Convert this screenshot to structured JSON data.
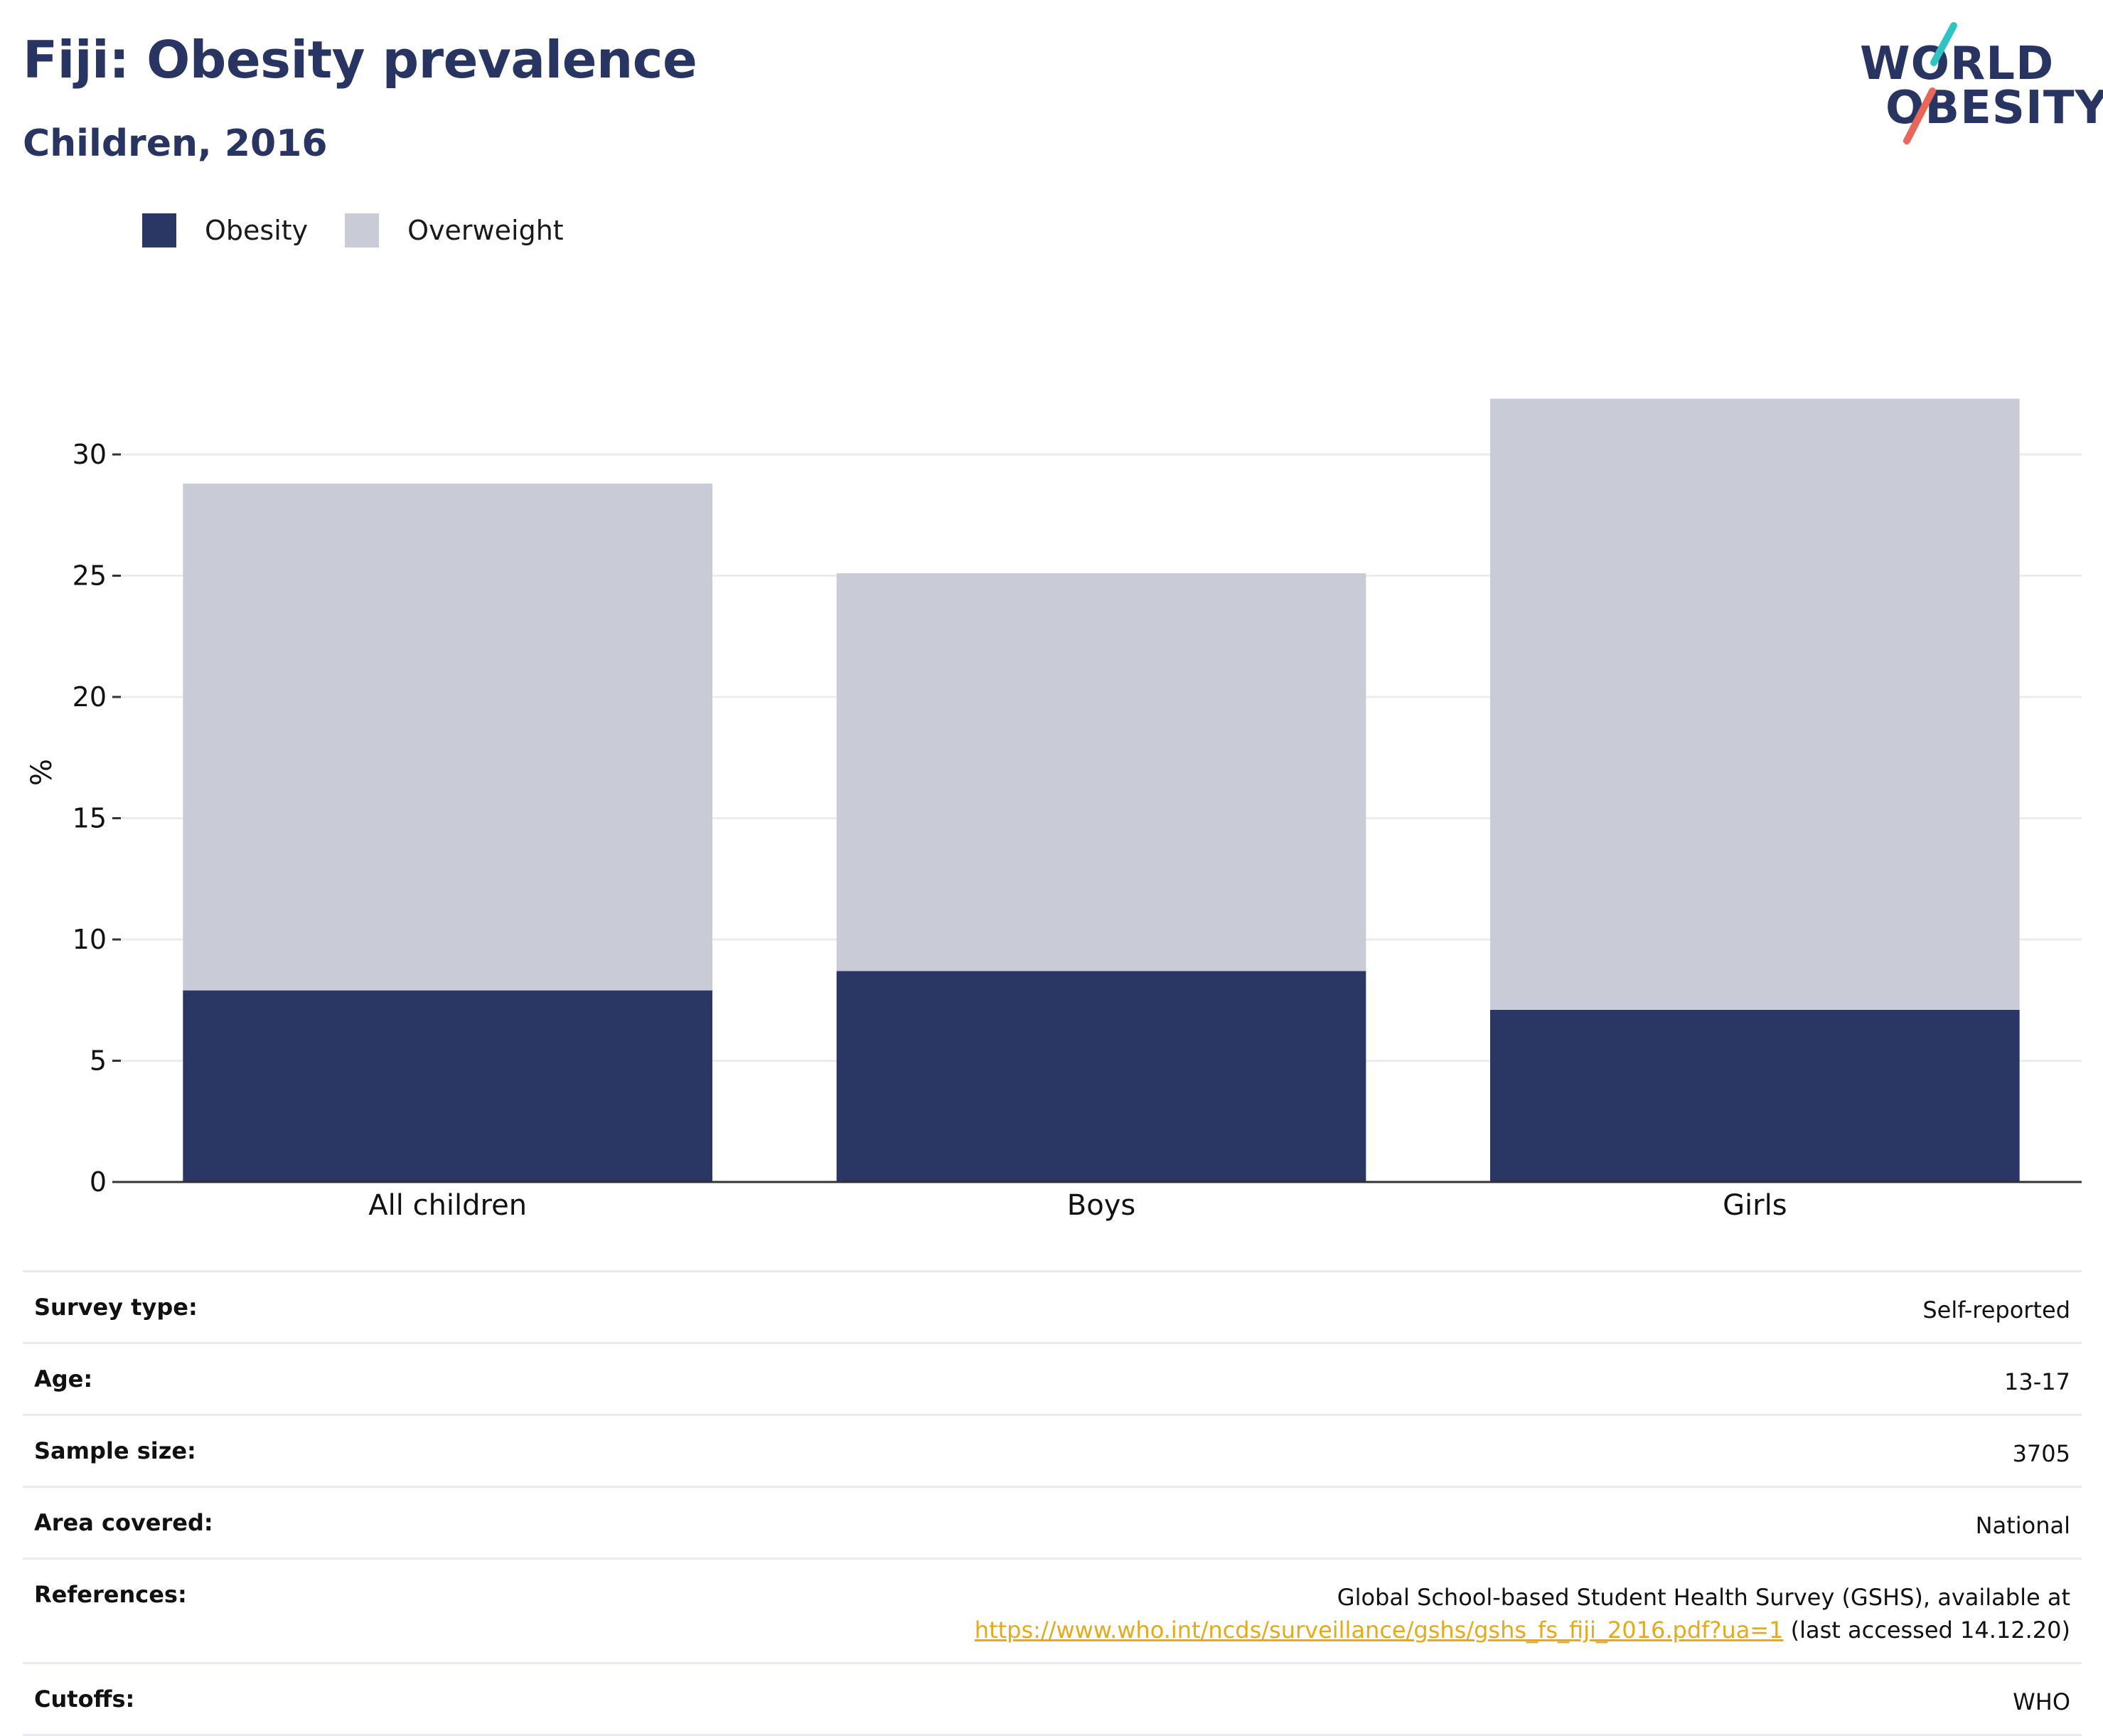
{
  "header": {
    "title": "Fiji: Obesity prevalence",
    "subtitle": "Children, 2016"
  },
  "logo": {
    "line1": "WORLD",
    "line2": "OBESITY"
  },
  "colors": {
    "obesity": "#2a3664",
    "overweight": "#c9cbd7",
    "accent_teal": "#2ec4c6",
    "accent_coral": "#e8665a"
  },
  "legend": {
    "items": [
      {
        "label": "Obesity"
      },
      {
        "label": "Overweight"
      }
    ]
  },
  "chart_data": {
    "type": "bar",
    "stacked": true,
    "ylabel": "%",
    "categories": [
      "All children",
      "Boys",
      "Girls"
    ],
    "series": [
      {
        "name": "Obesity",
        "values": [
          7.9,
          8.7,
          7.1
        ]
      },
      {
        "name": "Overweight",
        "values": [
          20.9,
          16.4,
          25.2
        ]
      }
    ],
    "ylim": [
      0,
      32.5
    ],
    "yticks": [
      0,
      5,
      10,
      15,
      20,
      25,
      30
    ],
    "grid": true,
    "legend_position": "top-left"
  },
  "info": {
    "survey_type": {
      "label": "Survey type:",
      "value": "Self-reported"
    },
    "age": {
      "label": "Age:",
      "value": "13-17"
    },
    "sample_size": {
      "label": "Sample size:",
      "value": "3705"
    },
    "area_covered": {
      "label": "Area covered:",
      "value": "National"
    },
    "references": {
      "label": "References:",
      "line1": "Global School-based Student Health Survey (GSHS), available at",
      "link": "https://www.who.int/ncds/surveillance/gshs/gshs_fs_fiji_2016.pdf?ua=1",
      "suffix": " (last accessed 14.12.20)"
    },
    "cutoffs": {
      "label": "Cutoffs:",
      "value": "WHO"
    }
  }
}
